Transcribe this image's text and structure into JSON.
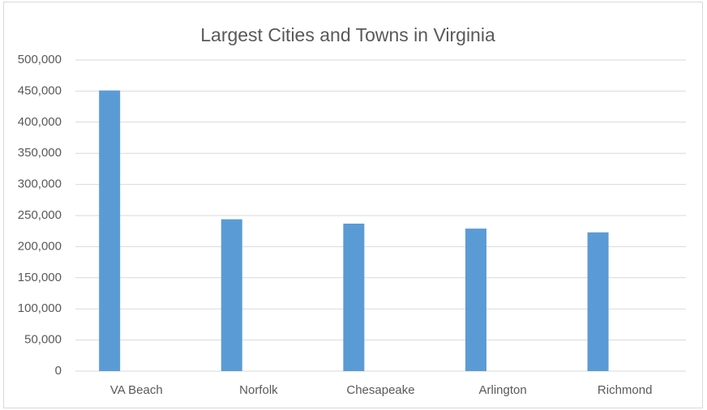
{
  "chart_data": {
    "type": "bar",
    "title": "Largest Cities and Towns in Virginia",
    "categories": [
      "VA Beach",
      "Norfolk",
      "Chesapeake",
      "Arlington",
      "Richmond"
    ],
    "values": [
      451000,
      244000,
      237000,
      229000,
      223000
    ],
    "color": "#5b9bd5",
    "ylim": [
      0,
      500000
    ],
    "yticks": [
      0,
      {
        "value": 50000,
        "label": "50,000"
      },
      {
        "value": 100000,
        "label": "100,000"
      },
      {
        "value": 150000,
        "label": "150,000"
      },
      {
        "value": 200000,
        "label": "200,000"
      },
      {
        "value": 250000,
        "label": "250,000"
      },
      {
        "value": 300000,
        "label": "300,000"
      },
      {
        "value": 350000,
        "label": "350,000"
      },
      {
        "value": 400000,
        "label": "400,000"
      },
      {
        "value": 450000,
        "label": "450,000"
      },
      {
        "value": 500000,
        "label": "500,000"
      }
    ],
    "grid": true
  }
}
